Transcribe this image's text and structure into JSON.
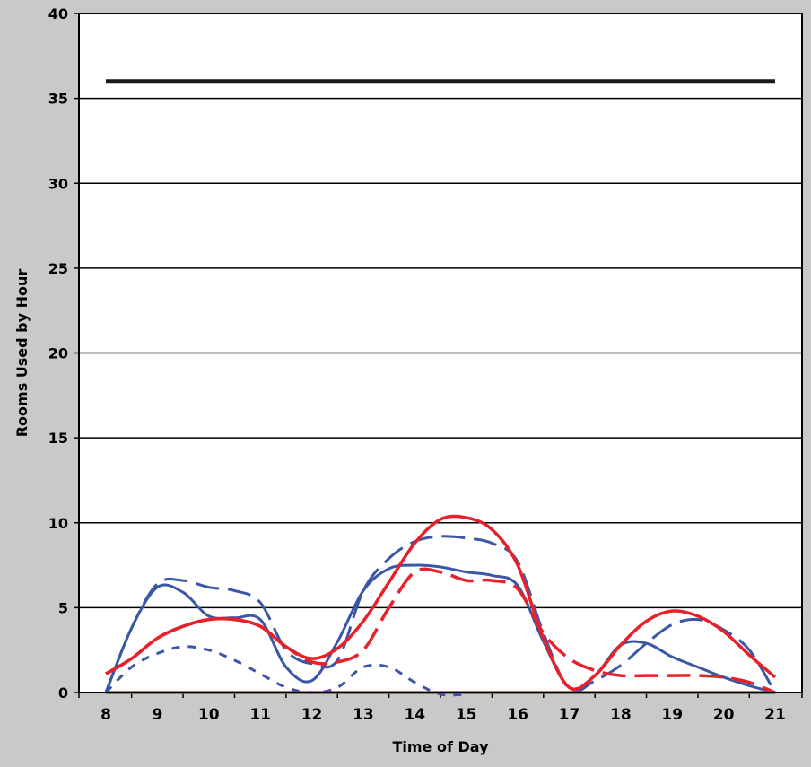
{
  "chart_data": {
    "type": "line",
    "title": "",
    "xlabel": "Time of Day",
    "ylabel": "Rooms Used by Hour",
    "xlim": [
      8,
      21
    ],
    "ylim": [
      0,
      40
    ],
    "x_ticks": [
      8,
      9,
      10,
      11,
      12,
      13,
      14,
      15,
      16,
      17,
      18,
      19,
      20,
      21
    ],
    "y_ticks": [
      0,
      5,
      10,
      15,
      20,
      25,
      30,
      35,
      40
    ],
    "grid": "horizontal",
    "legend": "none",
    "colors": {
      "black": "#1a1a1a",
      "blue": "#3a57a6",
      "red": "#e8202a",
      "green": "#1f8a3c",
      "plot_bg": "#ffffff",
      "page_bg": "#c8c9ca"
    },
    "series": [
      {
        "color": "#1a1a1a",
        "style": "solid",
        "width": 5,
        "x": [
          8,
          21
        ],
        "y": [
          36,
          36
        ]
      },
      {
        "color": "#1f8a3c",
        "style": "solid",
        "width": 3.5,
        "x": [
          8,
          21
        ],
        "y": [
          0,
          0
        ]
      },
      {
        "color": "#3a57a6",
        "style": "solid",
        "width": 3,
        "x": [
          8,
          8.5,
          9,
          9.5,
          10,
          10.5,
          11,
          11.5,
          12,
          12.5,
          13,
          13.5,
          14,
          14.5,
          15,
          15.5,
          16,
          16.5,
          17,
          17.5,
          18,
          18.5,
          19,
          19.5,
          20,
          20.5,
          21
        ],
        "y": [
          0,
          3.8,
          6.2,
          5.9,
          4.5,
          4.4,
          4.3,
          1.5,
          0.7,
          3,
          6,
          7.3,
          7.5,
          7.4,
          7.1,
          6.9,
          6.3,
          3,
          0.3,
          1,
          2.8,
          2.9,
          2.1,
          1.5,
          0.9,
          0.4,
          0
        ]
      },
      {
        "color": "#3a57a6",
        "style": "long-dash",
        "width": 3,
        "x": [
          8,
          8.5,
          9,
          9.5,
          10,
          10.5,
          11,
          11.5,
          12,
          12.5,
          13,
          13.5,
          14,
          14.5,
          15,
          15.5,
          16,
          16.5,
          17,
          17.5,
          18,
          18.5,
          19,
          19.5,
          20,
          20.5,
          21
        ],
        "y": [
          0,
          3.8,
          6.4,
          6.6,
          6.2,
          6,
          5.3,
          2.5,
          1.7,
          1.9,
          6,
          7.9,
          8.9,
          9.2,
          9.1,
          8.8,
          7.7,
          3.5,
          0.2,
          0.7,
          1.6,
          2.9,
          4,
          4.3,
          3.7,
          2.5,
          0
        ]
      },
      {
        "color": "#3a57a6",
        "style": "short-dash",
        "width": 3,
        "x": [
          8,
          8.5,
          9,
          9.5,
          10,
          10.5,
          11,
          11.5,
          12,
          12.5,
          13,
          13.5,
          14,
          14.5,
          15
        ],
        "y": [
          0,
          1.5,
          2.3,
          2.7,
          2.5,
          1.9,
          1.1,
          0.3,
          0,
          0.3,
          1.5,
          1.5,
          0.6,
          -0.1,
          -0.1
        ]
      },
      {
        "color": "#e8202a",
        "style": "solid",
        "width": 3.5,
        "x": [
          8,
          8.5,
          9,
          9.5,
          10,
          10.5,
          11,
          11.5,
          12,
          12.5,
          13,
          13.5,
          14,
          14.5,
          15,
          15.5,
          16,
          16.5,
          17,
          17.5,
          18,
          18.5,
          19,
          19.5,
          20,
          20.5,
          21
        ],
        "y": [
          1.1,
          2,
          3.2,
          3.9,
          4.3,
          4.3,
          3.9,
          2.7,
          2,
          2.6,
          4.2,
          6.5,
          8.8,
          10.2,
          10.3,
          9.6,
          7.5,
          3.2,
          0.3,
          1,
          2.8,
          4.2,
          4.8,
          4.5,
          3.6,
          2.2,
          0.9
        ]
      },
      {
        "color": "#e8202a",
        "style": "long-dash",
        "width": 3.5,
        "x": [
          8,
          8.5,
          9,
          9.5,
          10,
          10.5,
          11,
          11.5,
          12,
          12.5,
          13,
          13.5,
          14,
          14.5,
          15,
          15.5,
          16,
          16.5,
          17,
          17.5,
          18,
          18.5,
          19,
          19.5,
          20,
          20.5,
          21
        ],
        "y": [
          1.1,
          2,
          3.2,
          3.9,
          4.3,
          4.3,
          3.9,
          2.7,
          1.8,
          1.8,
          2.5,
          5,
          7.1,
          7.1,
          6.6,
          6.6,
          6.1,
          3.5,
          2,
          1.3,
          1,
          1,
          1,
          1,
          0.9,
          0.6,
          0
        ]
      }
    ]
  }
}
